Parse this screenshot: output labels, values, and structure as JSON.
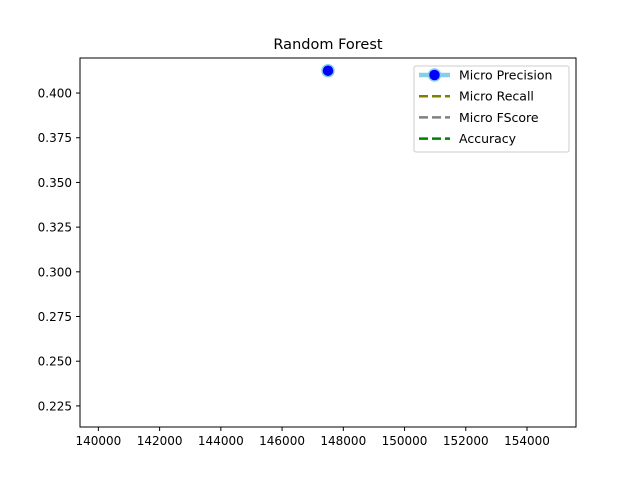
{
  "chart_data": {
    "type": "line",
    "title": "Random Forest",
    "xlabel": "",
    "ylabel": "",
    "xlim": [
      139400,
      155600
    ],
    "ylim": [
      0.2132,
      0.4196
    ],
    "xticks": [
      140000,
      142000,
      144000,
      146000,
      148000,
      150000,
      152000,
      154000
    ],
    "xtick_labels": [
      "140000",
      "142000",
      "144000",
      "146000",
      "148000",
      "150000",
      "152000",
      "154000"
    ],
    "yticks": [
      0.225,
      0.25,
      0.275,
      0.3,
      0.325,
      0.35,
      0.375,
      0.4
    ],
    "ytick_labels": [
      "0.225",
      "0.250",
      "0.275",
      "0.300",
      "0.325",
      "0.350",
      "0.375",
      "0.400"
    ],
    "grid": false,
    "legend_position": "top-right",
    "series": [
      {
        "name": "Micro Precision",
        "x": [
          147500
        ],
        "y": [
          0.4125
        ],
        "line_color": "#87ceeb",
        "marker_color": "#0000ff",
        "line_style": "solid",
        "marker": "circle"
      },
      {
        "name": "Micro Recall",
        "x": [
          147500
        ],
        "y": [
          0.4125
        ],
        "line_color": "#808000",
        "line_style": "dashed",
        "marker": "none"
      },
      {
        "name": "Micro FScore",
        "x": [
          147500
        ],
        "y": [
          0.4125
        ],
        "line_color": "#808080",
        "line_style": "dashed",
        "marker": "none"
      },
      {
        "name": "Accuracy",
        "x": [
          147500
        ],
        "y": [
          0.4125
        ],
        "line_color": "#008000",
        "line_style": "dashed",
        "marker": "none"
      }
    ]
  }
}
